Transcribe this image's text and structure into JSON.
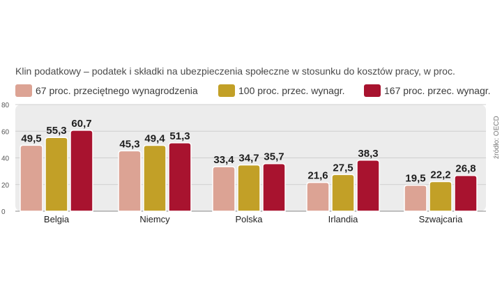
{
  "subtitle": "Klin podatkowy – podatek i składki na ubezpieczenia społeczne w stosunku do kosztów pracy, w proc.",
  "source": "źródło: OECD",
  "colors": {
    "series1": "#dca394",
    "series2": "#c2a027",
    "series3": "#a8132f",
    "panel": "#ececec",
    "grid": "#cfcfcf"
  },
  "chart_data": {
    "type": "bar",
    "categories": [
      "Belgia",
      "Niemcy",
      "Polska",
      "Irlandia",
      "Szwajcaria"
    ],
    "series": [
      {
        "name": "67 proc. przeciętnego wynagrodzenia",
        "values": [
          49.5,
          45.3,
          33.4,
          21.6,
          19.5
        ]
      },
      {
        "name": "100 proc. przec. wynagr.",
        "values": [
          55.3,
          49.4,
          34.7,
          27.5,
          22.2
        ]
      },
      {
        "name": "167 proc. przec. wynagr.",
        "values": [
          60.7,
          51.3,
          35.7,
          38.3,
          26.8
        ]
      }
    ],
    "value_labels": [
      [
        "49,5",
        "45,3",
        "33,4",
        "21,6",
        "19,5"
      ],
      [
        "55,3",
        "49,4",
        "34,7",
        "27,5",
        "22,2"
      ],
      [
        "60,7",
        "51,3",
        "35,7",
        "38,3",
        "26,8"
      ]
    ],
    "yticks": [
      0,
      20,
      40,
      60,
      80
    ],
    "ylim": [
      0,
      80
    ],
    "grid": true,
    "legend": "top"
  }
}
